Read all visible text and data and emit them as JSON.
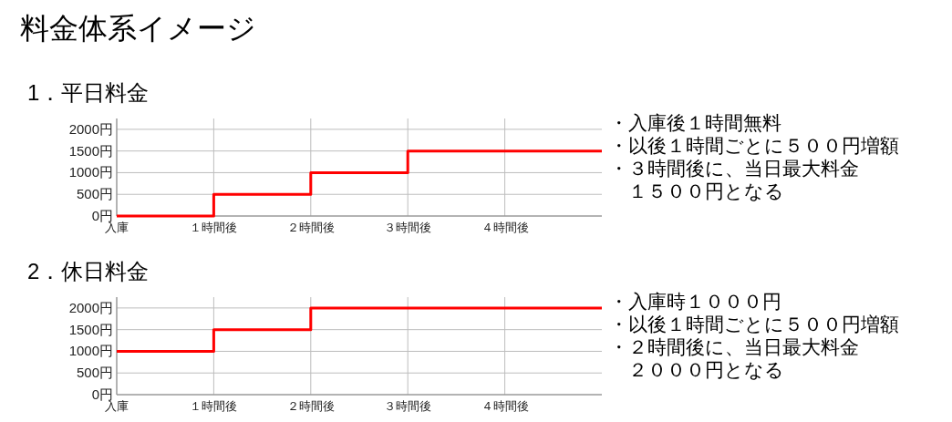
{
  "chart_data": [
    {
      "type": "step",
      "title": "料金体系イメージ",
      "subtitle": "1．平日料金",
      "x": [
        0,
        1,
        2,
        3,
        5
      ],
      "series": [
        {
          "color": "#ff0000",
          "values": [
            0,
            500,
            1000,
            1500,
            1500
          ]
        }
      ],
      "xlim": [
        0,
        5
      ],
      "xticks": [
        {
          "value": 0,
          "label": "入庫"
        },
        {
          "value": 1,
          "label": "１時間後"
        },
        {
          "value": 2,
          "label": "２時間後"
        },
        {
          "value": 3,
          "label": "３時間後"
        },
        {
          "value": 4,
          "label": "４時間後"
        }
      ],
      "ylim": [
        0,
        2250
      ],
      "yticks": [
        {
          "value": 0,
          "label": "0円"
        },
        {
          "value": 500,
          "label": "500円"
        },
        {
          "value": 1000,
          "label": "1000円"
        },
        {
          "value": 1500,
          "label": "1500円"
        },
        {
          "value": 2000,
          "label": "2000円"
        }
      ],
      "grid": true,
      "line_style": "solid",
      "annotations": [
        "・入庫後１時間無料",
        "・以後１時間ごとに５００円増額",
        "・３時間後に、当日最大料金１５００円となる"
      ]
    },
    {
      "type": "step",
      "title": "2．休日料金",
      "x": [
        0,
        1,
        2,
        5
      ],
      "series": [
        {
          "color": "#ff0000",
          "values": [
            1000,
            1500,
            2000,
            2000
          ]
        }
      ],
      "xlim": [
        0,
        5
      ],
      "xticks": [
        {
          "value": 0,
          "label": "入庫"
        },
        {
          "value": 1,
          "label": "１時間後"
        },
        {
          "value": 2,
          "label": "２時間後"
        },
        {
          "value": 3,
          "label": "３時間後"
        },
        {
          "value": 4,
          "label": "４時間後"
        }
      ],
      "ylim": [
        0,
        2250
      ],
      "yticks": [
        {
          "value": 0,
          "label": "0円"
        },
        {
          "value": 500,
          "label": "500円"
        },
        {
          "value": 1000,
          "label": "1000円"
        },
        {
          "value": 1500,
          "label": "1500円"
        },
        {
          "value": 2000,
          "label": "2000円"
        }
      ],
      "grid": true,
      "line_style": "solid",
      "annotations": [
        "・入庫時１０００円",
        "・以後１時間ごとに５００円増額",
        "・２時間後に、当日最大料金２０００円となる"
      ]
    }
  ]
}
